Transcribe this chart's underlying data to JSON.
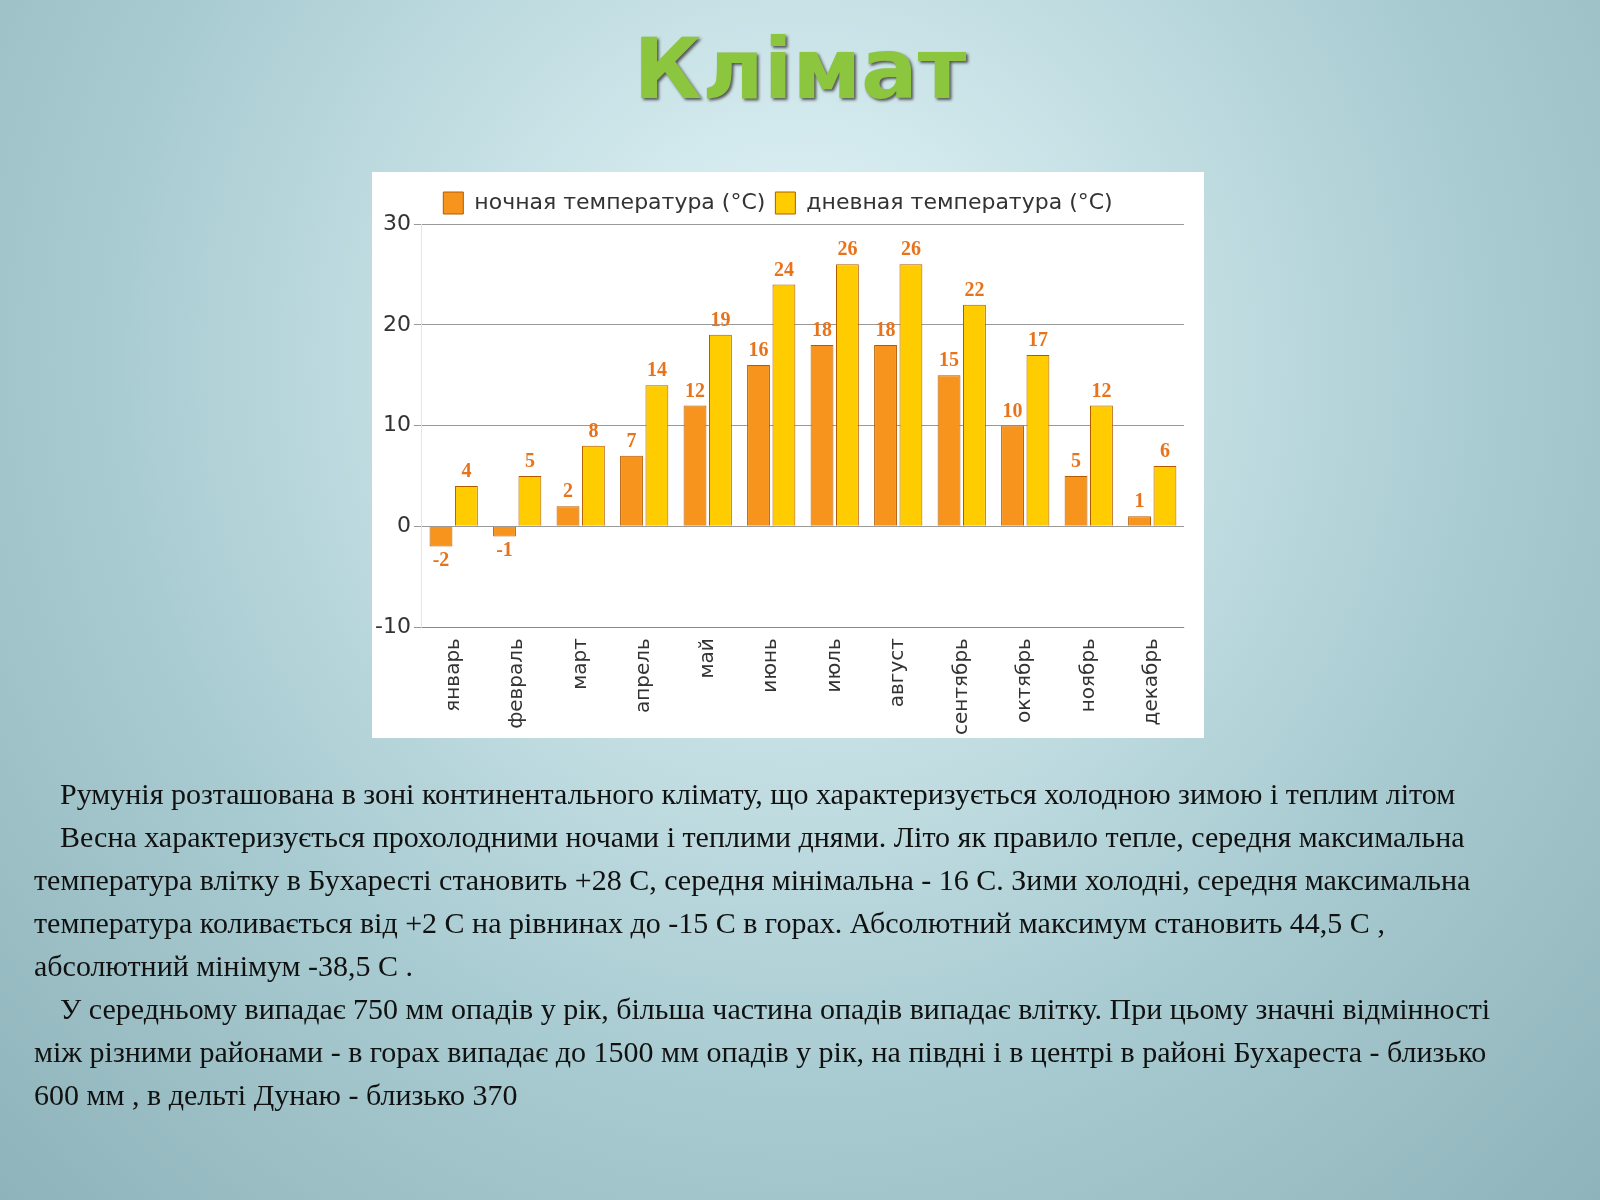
{
  "chart_data": {
    "type": "bar",
    "title": "Клімат",
    "categories": [
      "январь",
      "февраль",
      "март",
      "апрель",
      "май",
      "июнь",
      "июль",
      "август",
      "сентябрь",
      "октябрь",
      "ноябрь",
      "декабрь"
    ],
    "series": [
      {
        "name": "ночная температура (°C)",
        "color": "#f7941d",
        "values": [
          -2,
          -1,
          2,
          7,
          12,
          16,
          18,
          18,
          15,
          10,
          5,
          1
        ]
      },
      {
        "name": "дневная температура (°C)",
        "color": "#ffcc00",
        "values": [
          4,
          5,
          8,
          14,
          19,
          24,
          26,
          26,
          22,
          17,
          12,
          6
        ]
      }
    ],
    "ylim": [
      -10,
      30
    ],
    "yticks": [
      -10,
      0,
      10,
      20,
      30
    ],
    "grid": "y",
    "legend": "top",
    "data_labels": true,
    "annotations": [
      "Румунія розташована в зоні континентального клімату, що характеризується холодною зимою і теплим літом",
      "Весна характеризується прохолодними ночами і теплими днями. Літо як правило тепле, середня максимальна температура влітку в Бухаресті становить +28 С, середня мінімальна - 16 С. Зими холодні, середня максимальна температура коливається від +2 С на рівнинах до -15 С в горах.       Абсолютний максимум становить 44,5 С , абсолютний мінімум -38,5 С .",
      "У середньому випадає 750 мм опадів у рік, більша частина опадів випадає влітку. При цьому значні відмінності між різними районами - в горах випадає до 1500 мм опадів у рік, на півдні і в центрі в районі Бухареста - близько 600 мм , в дельті Дунаю - близько 370"
    ]
  }
}
